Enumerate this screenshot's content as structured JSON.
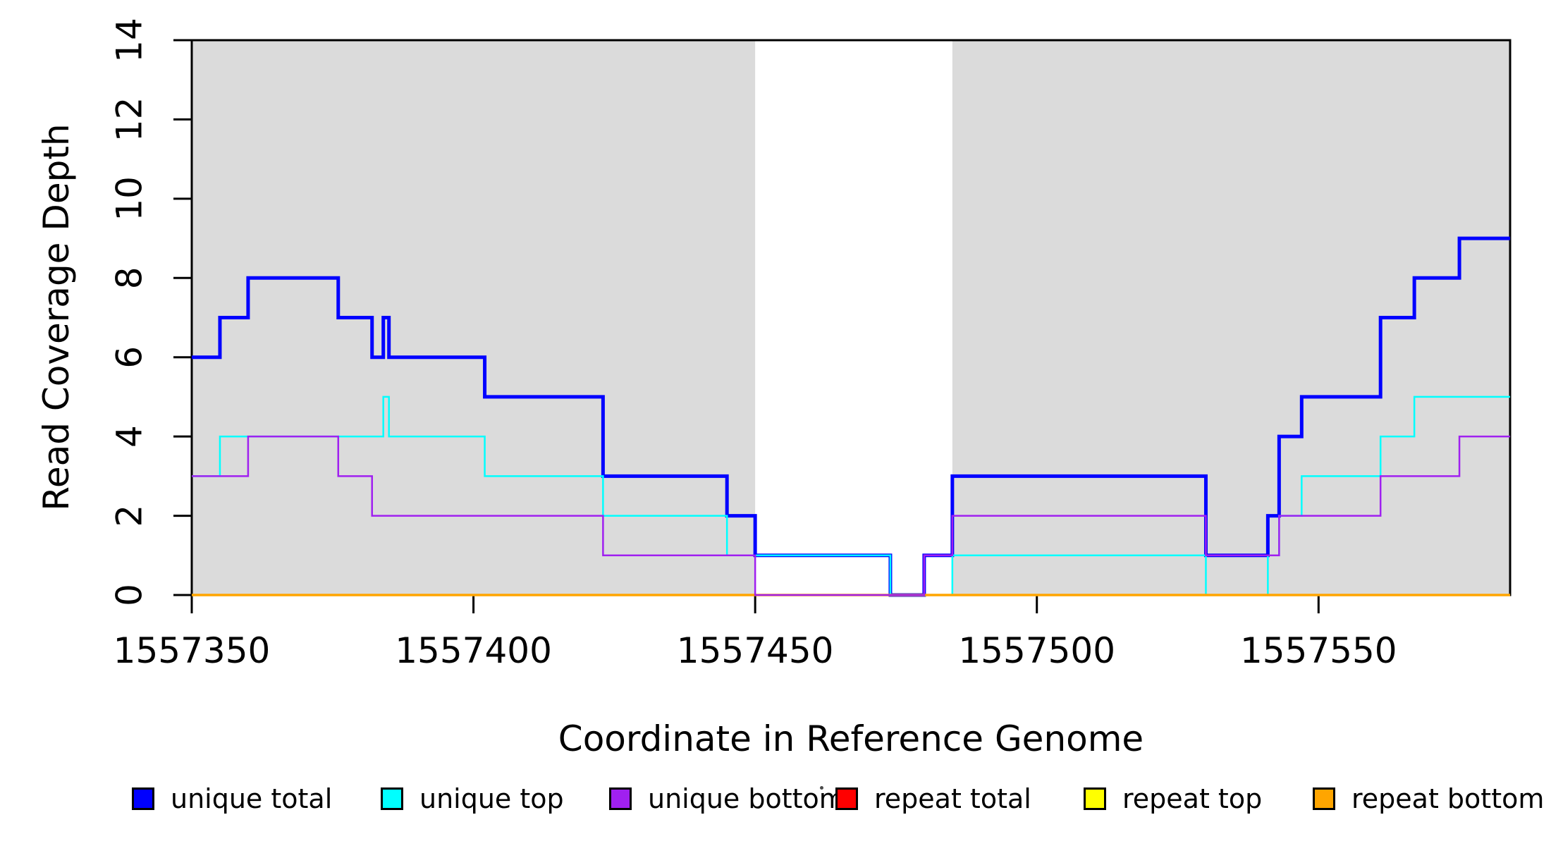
{
  "chart_data": {
    "type": "line",
    "subtype": "step",
    "title": "",
    "xlabel": "Coordinate in Reference Genome",
    "ylabel": "Read Coverage Depth",
    "xlim": [
      1557350,
      1557584
    ],
    "ylim": [
      0,
      14
    ],
    "grid": false,
    "background_color": "#FFFFFF",
    "frame_color": "#000000",
    "legend_position": "bottom",
    "x_ticks": [
      {
        "value": 1557350,
        "label": "1557350"
      },
      {
        "value": 1557400,
        "label": "1557400"
      },
      {
        "value": 1557450,
        "label": "1557450"
      },
      {
        "value": 1557500,
        "label": "1557500"
      },
      {
        "value": 1557550,
        "label": "1557550"
      }
    ],
    "y_ticks": [
      {
        "value": 0,
        "label": "0"
      },
      {
        "value": 2,
        "label": "2"
      },
      {
        "value": 4,
        "label": "4"
      },
      {
        "value": 6,
        "label": "6"
      },
      {
        "value": 8,
        "label": "8"
      },
      {
        "value": 10,
        "label": "10"
      },
      {
        "value": 12,
        "label": "12"
      },
      {
        "value": 14,
        "label": "14"
      }
    ],
    "shaded_regions": [
      {
        "x_start": 1557350,
        "x_end": 1557450,
        "color": "#DBDBDB"
      },
      {
        "x_start": 1557485,
        "x_end": 1557584,
        "color": "#DBDBDB"
      }
    ],
    "series": [
      {
        "name": "unique total",
        "color": "#0000FF",
        "line_width": 5,
        "z": 1,
        "steps": [
          [
            1557350,
            6
          ],
          [
            1557355,
            7
          ],
          [
            1557360,
            8
          ],
          [
            1557376,
            7
          ],
          [
            1557382,
            6
          ],
          [
            1557384,
            7
          ],
          [
            1557385,
            6
          ],
          [
            1557402,
            5
          ],
          [
            1557423,
            3
          ],
          [
            1557445,
            2
          ],
          [
            1557450,
            1
          ],
          [
            1557474,
            0
          ],
          [
            1557480,
            1
          ],
          [
            1557485,
            3
          ],
          [
            1557530,
            1
          ],
          [
            1557541,
            2
          ],
          [
            1557543,
            4
          ],
          [
            1557547,
            5
          ],
          [
            1557561,
            7
          ],
          [
            1557567,
            8
          ],
          [
            1557575,
            9
          ]
        ]
      },
      {
        "name": "unique top",
        "color": "#00FFFF",
        "line_width": 2.5,
        "z": 2,
        "steps": [
          [
            1557350,
            3
          ],
          [
            1557355,
            4
          ],
          [
            1557384,
            5
          ],
          [
            1557385,
            4
          ],
          [
            1557402,
            3
          ],
          [
            1557423,
            2
          ],
          [
            1557445,
            1
          ],
          [
            1557474,
            0
          ],
          [
            1557485,
            1
          ],
          [
            1557530,
            0
          ],
          [
            1557541,
            1
          ],
          [
            1557543,
            2
          ],
          [
            1557547,
            3
          ],
          [
            1557561,
            4
          ],
          [
            1557567,
            5
          ]
        ]
      },
      {
        "name": "unique bottom",
        "color": "#A020F0",
        "line_width": 2.5,
        "z": 6,
        "steps": [
          [
            1557350,
            3
          ],
          [
            1557360,
            4
          ],
          [
            1557376,
            3
          ],
          [
            1557382,
            2
          ],
          [
            1557423,
            1
          ],
          [
            1557450,
            0
          ],
          [
            1557480,
            1
          ],
          [
            1557485,
            2
          ],
          [
            1557530,
            1
          ],
          [
            1557543,
            2
          ],
          [
            1557561,
            3
          ],
          [
            1557575,
            4
          ]
        ]
      },
      {
        "name": "repeat total",
        "color": "#FF0000",
        "line_width": 2.5,
        "z": 3,
        "steps": [
          [
            1557350,
            0
          ]
        ]
      },
      {
        "name": "repeat top",
        "color": "#FFFF00",
        "line_width": 2.5,
        "z": 4,
        "steps": [
          [
            1557350,
            0
          ]
        ]
      },
      {
        "name": "repeat bottom",
        "color": "#FFA500",
        "line_width": 3.5,
        "z": 5,
        "steps": [
          [
            1557350,
            0
          ]
        ]
      }
    ]
  }
}
